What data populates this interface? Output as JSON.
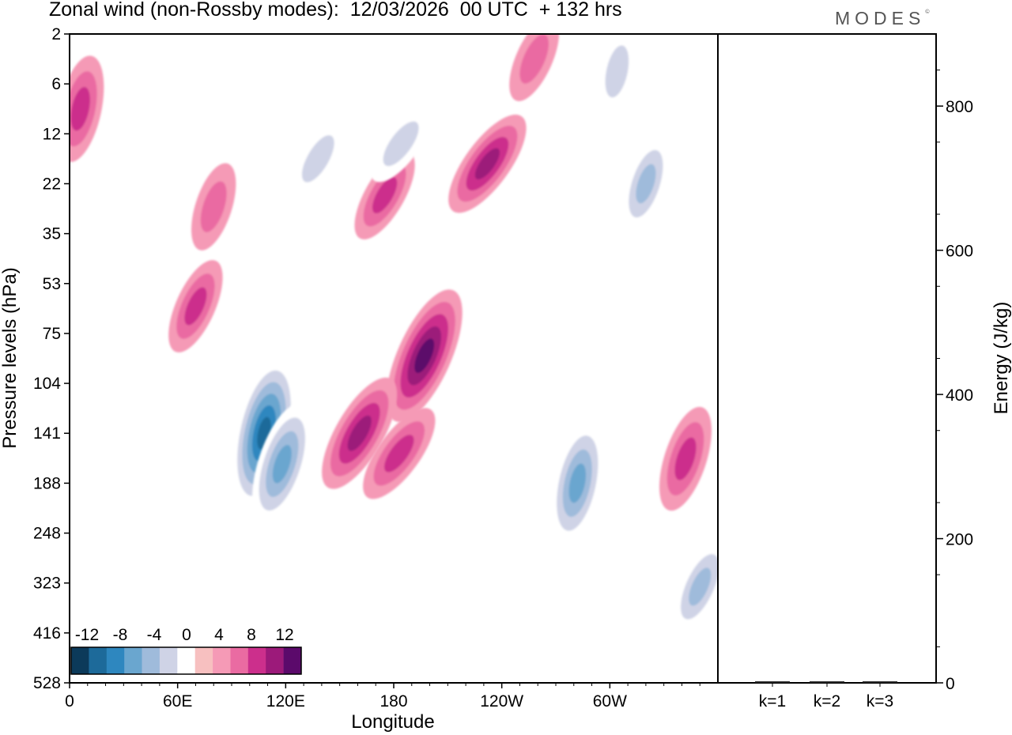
{
  "header": {
    "title": "Zonal wind (non-Rossby modes):  12/03/2026  00 UTC  + 132 hrs",
    "logo": "MODES",
    "logo_mark": "©"
  },
  "chart_data": [
    {
      "type": "heatmap",
      "title": "Zonal wind (non-Rossby modes):  12/03/2026  00 UTC  + 132 hrs",
      "xlabel": "Longitude",
      "ylabel": "Pressure levels (hPa)",
      "x_ticks": [
        "0",
        "60E",
        "120E",
        "180",
        "120W",
        "60W"
      ],
      "x_tick_degrees": [
        0,
        60,
        120,
        180,
        240,
        300
      ],
      "xlim": [
        0,
        360
      ],
      "y_ticks": [
        "2",
        "6",
        "12",
        "22",
        "35",
        "53",
        "75",
        "104",
        "141",
        "188",
        "248",
        "323",
        "416",
        "528"
      ],
      "colorbar": {
        "labels": [
          "-12",
          "-8",
          "-4",
          "0",
          "4",
          "8",
          "12"
        ],
        "levels": [
          -14,
          -12,
          -10,
          -8,
          -6,
          -4,
          -2,
          2,
          4,
          6,
          8,
          10,
          12,
          14
        ],
        "colors": [
          "#0c3a5a",
          "#1d6a9a",
          "#2e87bf",
          "#6aa6cf",
          "#9fbbdb",
          "#cfd3e6",
          "#ffffff",
          "#f7c0c0",
          "#f59ab6",
          "#ea6ba2",
          "#cc2f8c",
          "#9c1a7a",
          "#5b0a6b"
        ]
      },
      "features": [
        {
          "lon": 108,
          "p": 141,
          "value": -12
        },
        {
          "lon": 118,
          "p": 170,
          "value": -9
        },
        {
          "lon": 197,
          "p": 88,
          "value": 11
        },
        {
          "lon": 161,
          "p": 141,
          "value": 9
        },
        {
          "lon": 183,
          "p": 160,
          "value": 7
        },
        {
          "lon": 282,
          "p": 188,
          "value": -9
        },
        {
          "lon": 342,
          "p": 165,
          "value": 7
        },
        {
          "lon": 350,
          "p": 330,
          "value": -6
        },
        {
          "lon": 175,
          "p": 25,
          "value": 6
        },
        {
          "lon": 232,
          "p": 18,
          "value": 8
        },
        {
          "lon": 6,
          "p": 9,
          "value": 7
        },
        {
          "lon": 80,
          "p": 28,
          "value": 5
        },
        {
          "lon": 70,
          "p": 63,
          "value": 6
        },
        {
          "lon": 138,
          "p": 17,
          "value": -5
        },
        {
          "lon": 184,
          "p": 14,
          "value": -5
        },
        {
          "lon": 304,
          "p": 5,
          "value": -5
        },
        {
          "lon": 320,
          "p": 22,
          "value": -6
        },
        {
          "lon": 258,
          "p": 4,
          "value": 5
        }
      ]
    },
    {
      "type": "bar",
      "title": "",
      "xlabel": "",
      "ylabel": "Energy (J/kg)",
      "categories": [
        "k=1",
        "k=2",
        "k=3"
      ],
      "values": [
        1,
        1,
        1
      ],
      "ylim": [
        0,
        900
      ],
      "y_ticks": [
        "0",
        "200",
        "400",
        "600",
        "800"
      ]
    }
  ]
}
